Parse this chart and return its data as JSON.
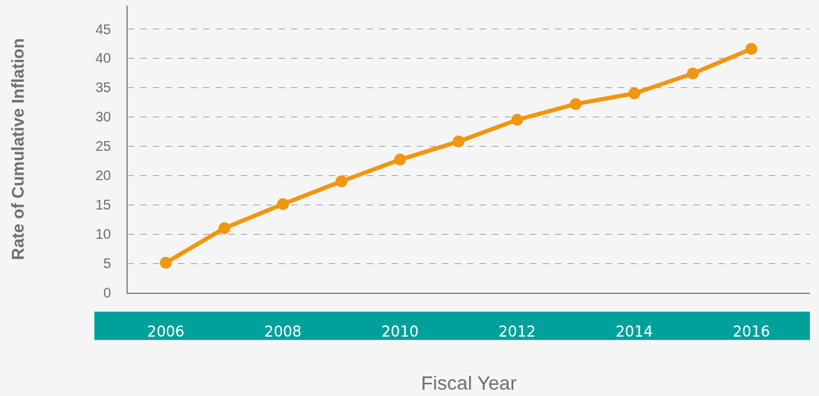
{
  "chart_data": {
    "type": "line",
    "xlabel": "Fiscal Year",
    "ylabel": "Rate of Cumulative Inflation",
    "x": [
      2006,
      2007,
      2008,
      2009,
      2010,
      2011,
      2012,
      2013,
      2014,
      2015,
      2016
    ],
    "series": [
      {
        "color": "#f0960f",
        "values": [
          5.1,
          11.0,
          15.1,
          19.0,
          22.7,
          25.8,
          29.5,
          32.2,
          34.0,
          37.4,
          41.6
        ]
      }
    ],
    "xlim": [
      2005.35,
      2017
    ],
    "xticks": [
      2006,
      2008,
      2010,
      2012,
      2014,
      2016
    ],
    "ylim": [
      0,
      49
    ],
    "yticks": [
      0,
      5,
      10,
      15,
      20,
      25,
      30,
      35,
      40,
      45
    ],
    "grid": "y",
    "legend": false,
    "marker": "circle",
    "line_style": "solid"
  }
}
